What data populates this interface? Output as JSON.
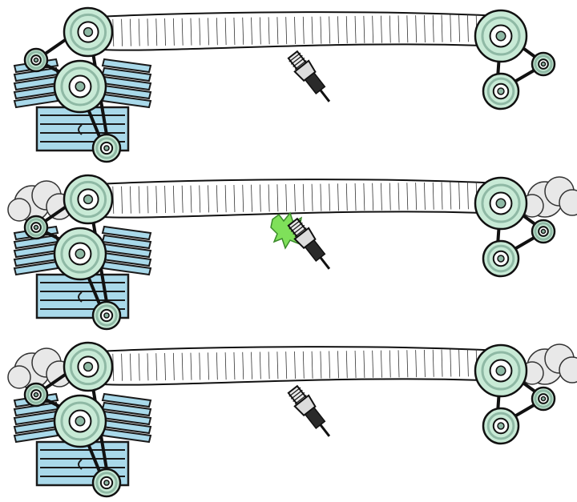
{
  "panels": [
    {
      "name": "frame-1",
      "smoke": false,
      "spark": false
    },
    {
      "name": "frame-2",
      "smoke": true,
      "spark": true
    },
    {
      "name": "frame-3",
      "smoke": true,
      "spark": false
    }
  ],
  "colors": {
    "pulley_fill": "#c8ead6",
    "pulley_dark": "#8fb9a5",
    "engine_fill": "#a9d9ea",
    "engine_dark": "#1a1a1a",
    "belt_fill": "#ffffff",
    "smoke": "#e8e8e8",
    "spark_flash": "#7fe05a",
    "plug_body": "#e6e6e6"
  }
}
